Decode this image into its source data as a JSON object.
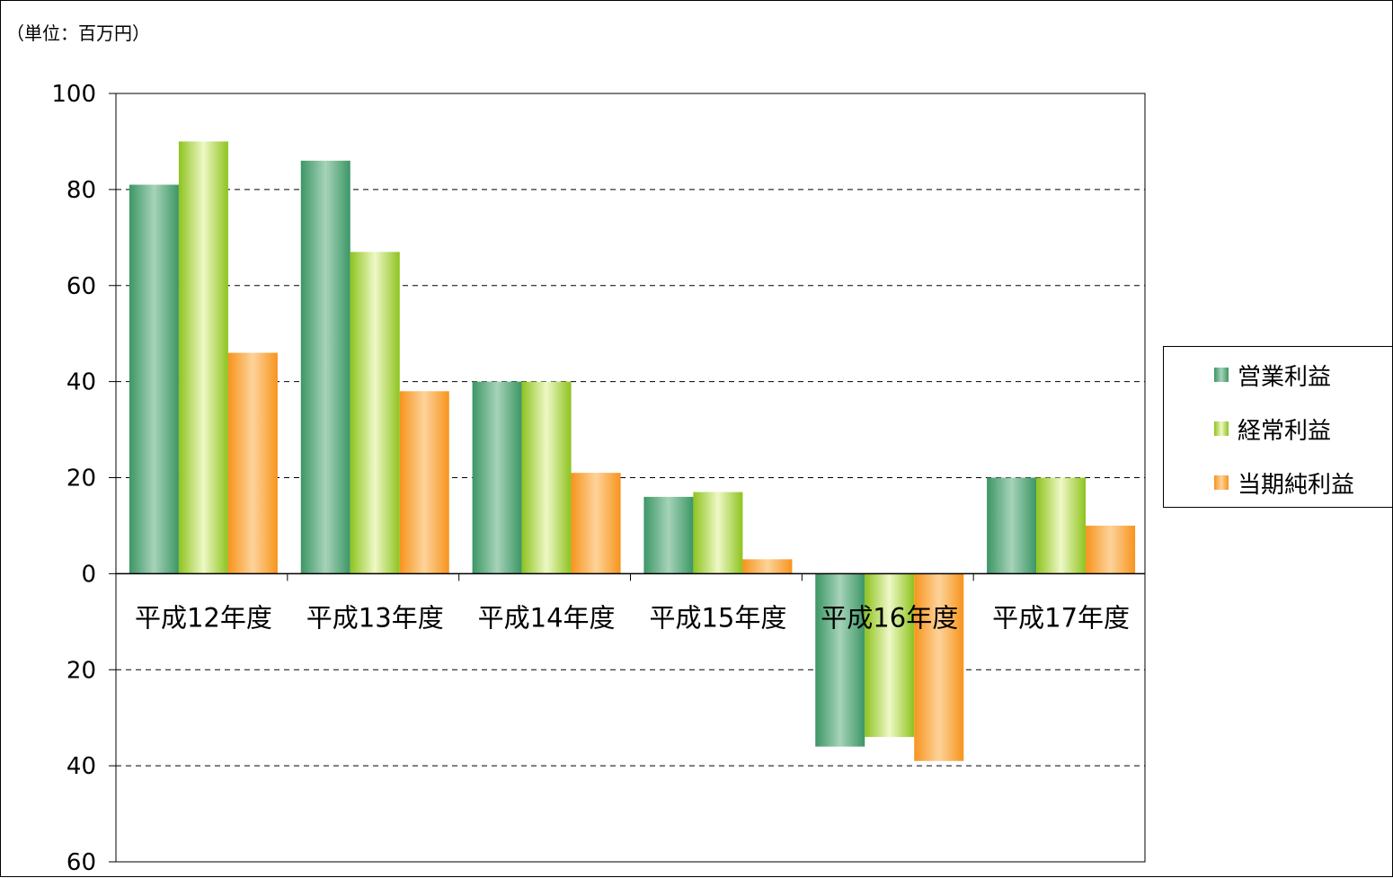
{
  "chart_data": {
    "type": "bar",
    "unit_label": "（単位：百万円）",
    "categories": [
      "平成12年度",
      "平成13年度",
      "平成14年度",
      "平成15年度",
      "平成16年度",
      "平成17年度"
    ],
    "series": [
      {
        "name": "営業利益",
        "values": [
          81,
          86,
          40,
          16,
          -36,
          20
        ],
        "color": "#3c9665",
        "highlight": "#a6d3b9"
      },
      {
        "name": "経常利益",
        "values": [
          90,
          67,
          40,
          17,
          -34,
          20
        ],
        "color": "#8ec31f",
        "highlight": "#eef8c6"
      },
      {
        "name": "当期純利益",
        "values": [
          46,
          38,
          21,
          3,
          -39,
          10
        ],
        "color": "#f7941d",
        "highlight": "#fdd39a"
      }
    ],
    "y_ticks": [
      {
        "value": 100,
        "label": "100"
      },
      {
        "value": 80,
        "label": "80"
      },
      {
        "value": 60,
        "label": "60"
      },
      {
        "value": 40,
        "label": "40"
      },
      {
        "value": 20,
        "label": "20"
      },
      {
        "value": 0,
        "label": "0"
      },
      {
        "value": -20,
        "label": "20"
      },
      {
        "value": -40,
        "label": "40"
      },
      {
        "value": -60,
        "label": "60"
      }
    ],
    "ylim": [
      -60,
      100
    ],
    "grid": true,
    "grid_style": "dashed",
    "legend_position": "right"
  }
}
